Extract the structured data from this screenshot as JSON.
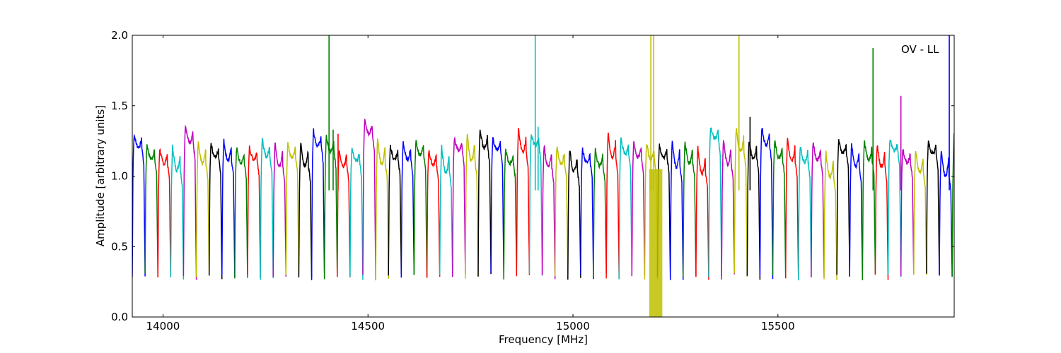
{
  "chart_data": {
    "type": "line",
    "annotation": "OV - LL",
    "xlabel": "Frequency [MHz]",
    "ylabel": "Amplitude [arbitrary units]",
    "xlim": [
      13925,
      15930
    ],
    "ylim": [
      0,
      2.0
    ],
    "x_ticks": [
      14000,
      14500,
      15000,
      15500
    ],
    "y_ticks": [
      0.0,
      0.5,
      1.0,
      1.5,
      2.0
    ],
    "x_tick_labels": [
      "14000",
      "14500",
      "15000",
      "15500"
    ],
    "y_tick_labels": [
      "0.0",
      "0.5",
      "1.0",
      "1.5",
      "2.0"
    ],
    "grid": false,
    "legend": "none",
    "color_cycle": [
      "#0000ff",
      "#008000",
      "#ff0000",
      "#00bfbf",
      "#bf00bf",
      "#bfbf00",
      "#000000"
    ],
    "band_width_mhz": 31.25,
    "band_start_mhz": 13925,
    "band_peak_amplitudes": [
      1.3,
      1.23,
      1.2,
      1.22,
      1.37,
      1.25,
      1.24,
      1.26,
      1.21,
      1.21,
      1.27,
      1.26,
      1.24,
      1.25,
      1.33,
      1.29,
      1.2,
      1.2,
      1.4,
      1.28,
      1.22,
      1.25,
      1.26,
      1.19,
      1.22,
      1.27,
      1.31,
      1.34,
      1.27,
      1.2,
      1.34,
      1.3,
      1.23,
      1.22,
      1.2,
      1.2,
      1.2,
      1.32,
      1.28,
      1.25,
      1.24,
      1.22,
      1.26,
      1.26,
      1.21,
      1.36,
      1.27,
      1.35,
      1.26,
      1.36,
      1.26,
      1.28,
      1.22,
      1.25,
      1.18,
      1.26,
      1.24,
      1.25,
      1.23,
      1.27,
      1.2,
      1.19,
      1.25,
      1.2,
      1.3
    ],
    "rfi_spikes": [
      {
        "x": 14405,
        "y": 2.0
      },
      {
        "x": 14415,
        "y": 1.33
      },
      {
        "x": 14427,
        "y": 1.3
      },
      {
        "x": 14908,
        "y": 2.0
      },
      {
        "x": 14915,
        "y": 1.35
      },
      {
        "x": 15190,
        "y": 2.0
      },
      {
        "x": 15197,
        "y": 2.0
      },
      {
        "x": 15405,
        "y": 2.0
      },
      {
        "x": 15432,
        "y": 1.42
      },
      {
        "x": 15732,
        "y": 1.91
      },
      {
        "x": 15800,
        "y": 1.57
      },
      {
        "x": 15918,
        "y": 2.0
      }
    ]
  }
}
